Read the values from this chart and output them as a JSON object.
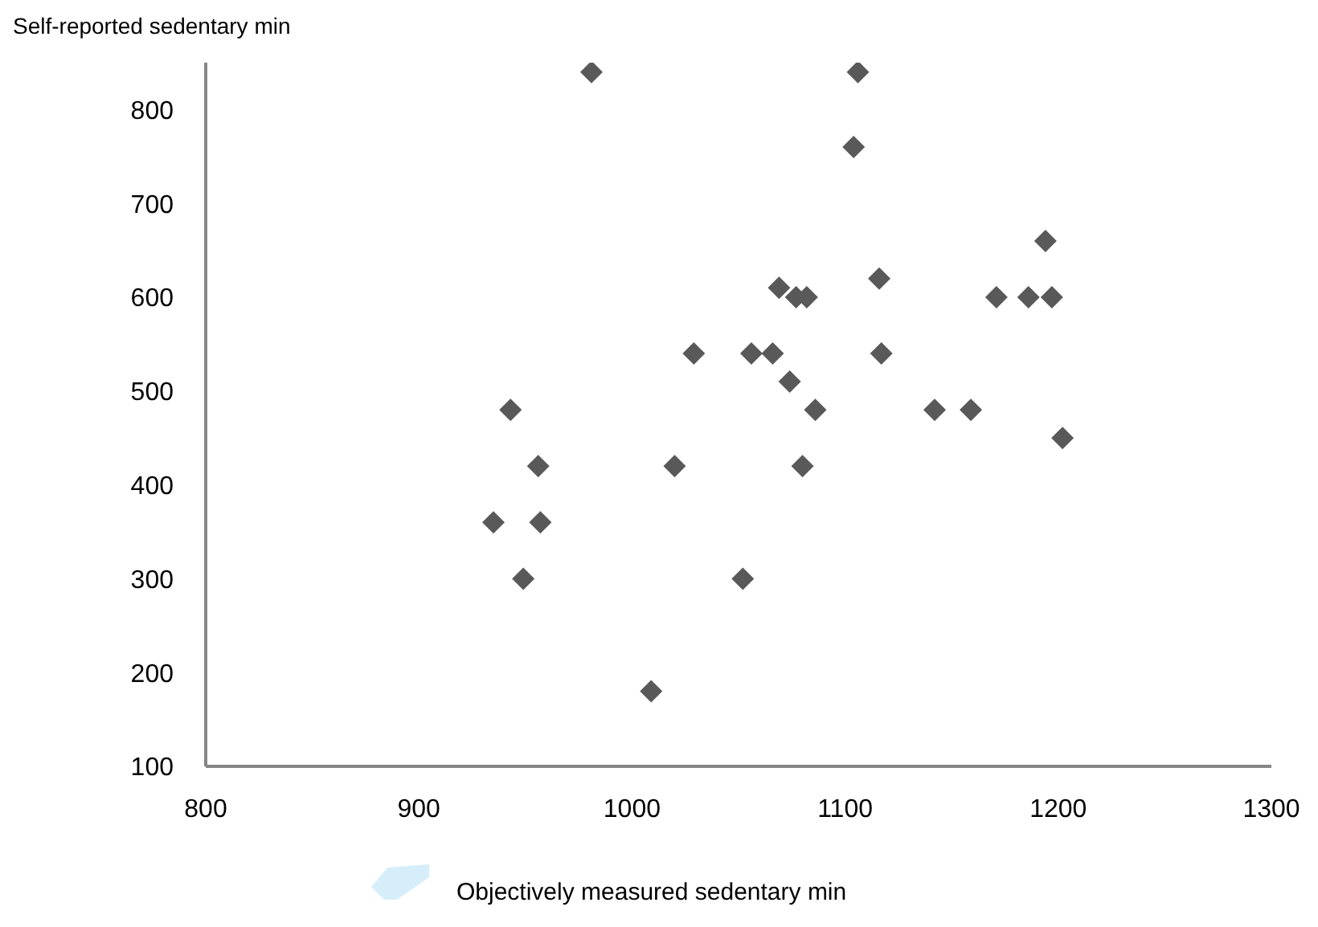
{
  "chart_data": {
    "type": "scatter",
    "ylabel": "Self-reported sedentary min",
    "xlabel": "Objectively measured sedentary min",
    "xlim": [
      800,
      1300
    ],
    "xticks": [
      800,
      900,
      1000,
      1100,
      1200,
      1300
    ],
    "ylim": [
      100,
      850
    ],
    "yticks": [
      100,
      200,
      300,
      400,
      500,
      600,
      700,
      800
    ],
    "grid": false,
    "legend": false,
    "marker": "diamond",
    "series": [
      {
        "color": "#595959",
        "x": [
          981,
          1106,
          1104,
          1194,
          1116,
          1069,
          1077,
          1082,
          1171,
          1186,
          1197,
          1029,
          1056,
          1066,
          1117,
          1074,
          943,
          1086,
          1142,
          1159,
          1202,
          956,
          1020,
          1080,
          935,
          957,
          949,
          1052,
          1009
        ],
        "values": [
          840,
          840,
          760,
          660,
          620,
          610,
          600,
          600,
          600,
          600,
          600,
          540,
          540,
          540,
          540,
          510,
          480,
          480,
          480,
          480,
          450,
          420,
          420,
          420,
          360,
          360,
          300,
          300,
          180
        ]
      }
    ]
  }
}
